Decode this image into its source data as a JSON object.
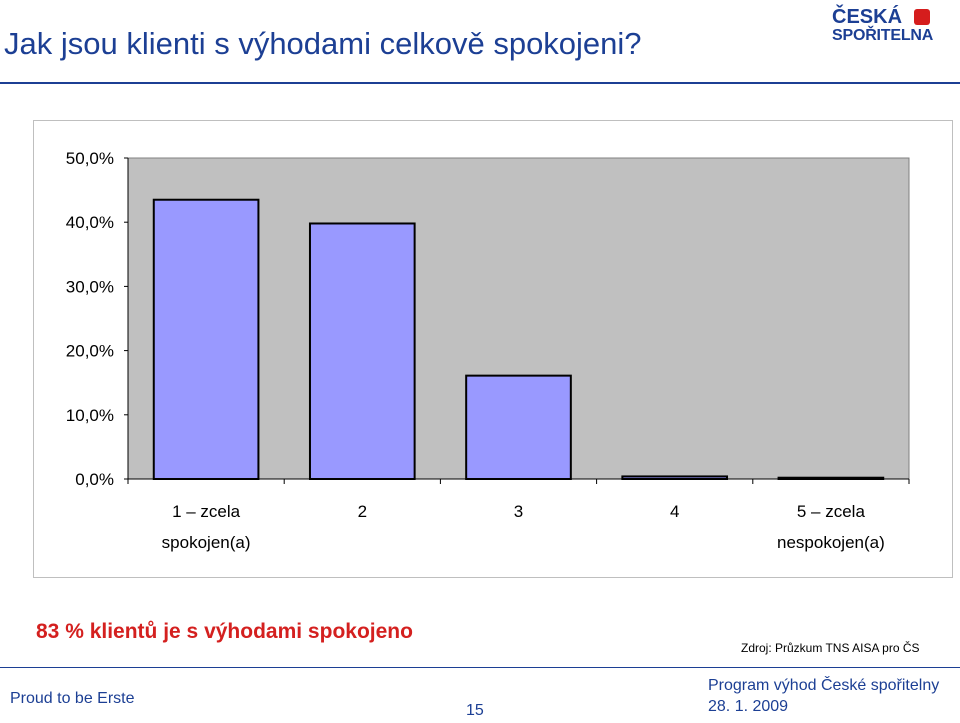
{
  "slide": {
    "title": "Jak jsou klienti s výhodami celkově spokojeni?",
    "logo_line1": "ČESKÁ",
    "logo_line2": "SPOŘITELNA",
    "summary": "83 % klientů je s výhodami spokojeno",
    "source": "Zdroj: Průzkum TNS AISA pro ČS"
  },
  "footer": {
    "left": "Proud to be Erste",
    "page": "15",
    "right": "Program výhod České spořitelny",
    "date": "28. 1. 2009"
  },
  "colors": {
    "bar_fill": "#9999ff",
    "plot_bg": "#c0c0c0",
    "title": "#1c3f94",
    "summary": "#d4201f"
  },
  "chart_data": {
    "type": "bar",
    "categories": [
      [
        "1 – zcela",
        "spokojen(a)"
      ],
      [
        "2"
      ],
      [
        "3"
      ],
      [
        "4"
      ],
      [
        "5 – zcela",
        "nespokojen(a)"
      ]
    ],
    "values": [
      43.5,
      39.8,
      16.1,
      0.4,
      0.2
    ],
    "y_ticks": [
      "0,0%",
      "10,0%",
      "20,0%",
      "30,0%",
      "40,0%",
      "50,0%"
    ],
    "ylim": [
      0,
      50
    ],
    "grid": false,
    "legend": "none",
    "title": "",
    "xlabel": "",
    "ylabel": ""
  }
}
